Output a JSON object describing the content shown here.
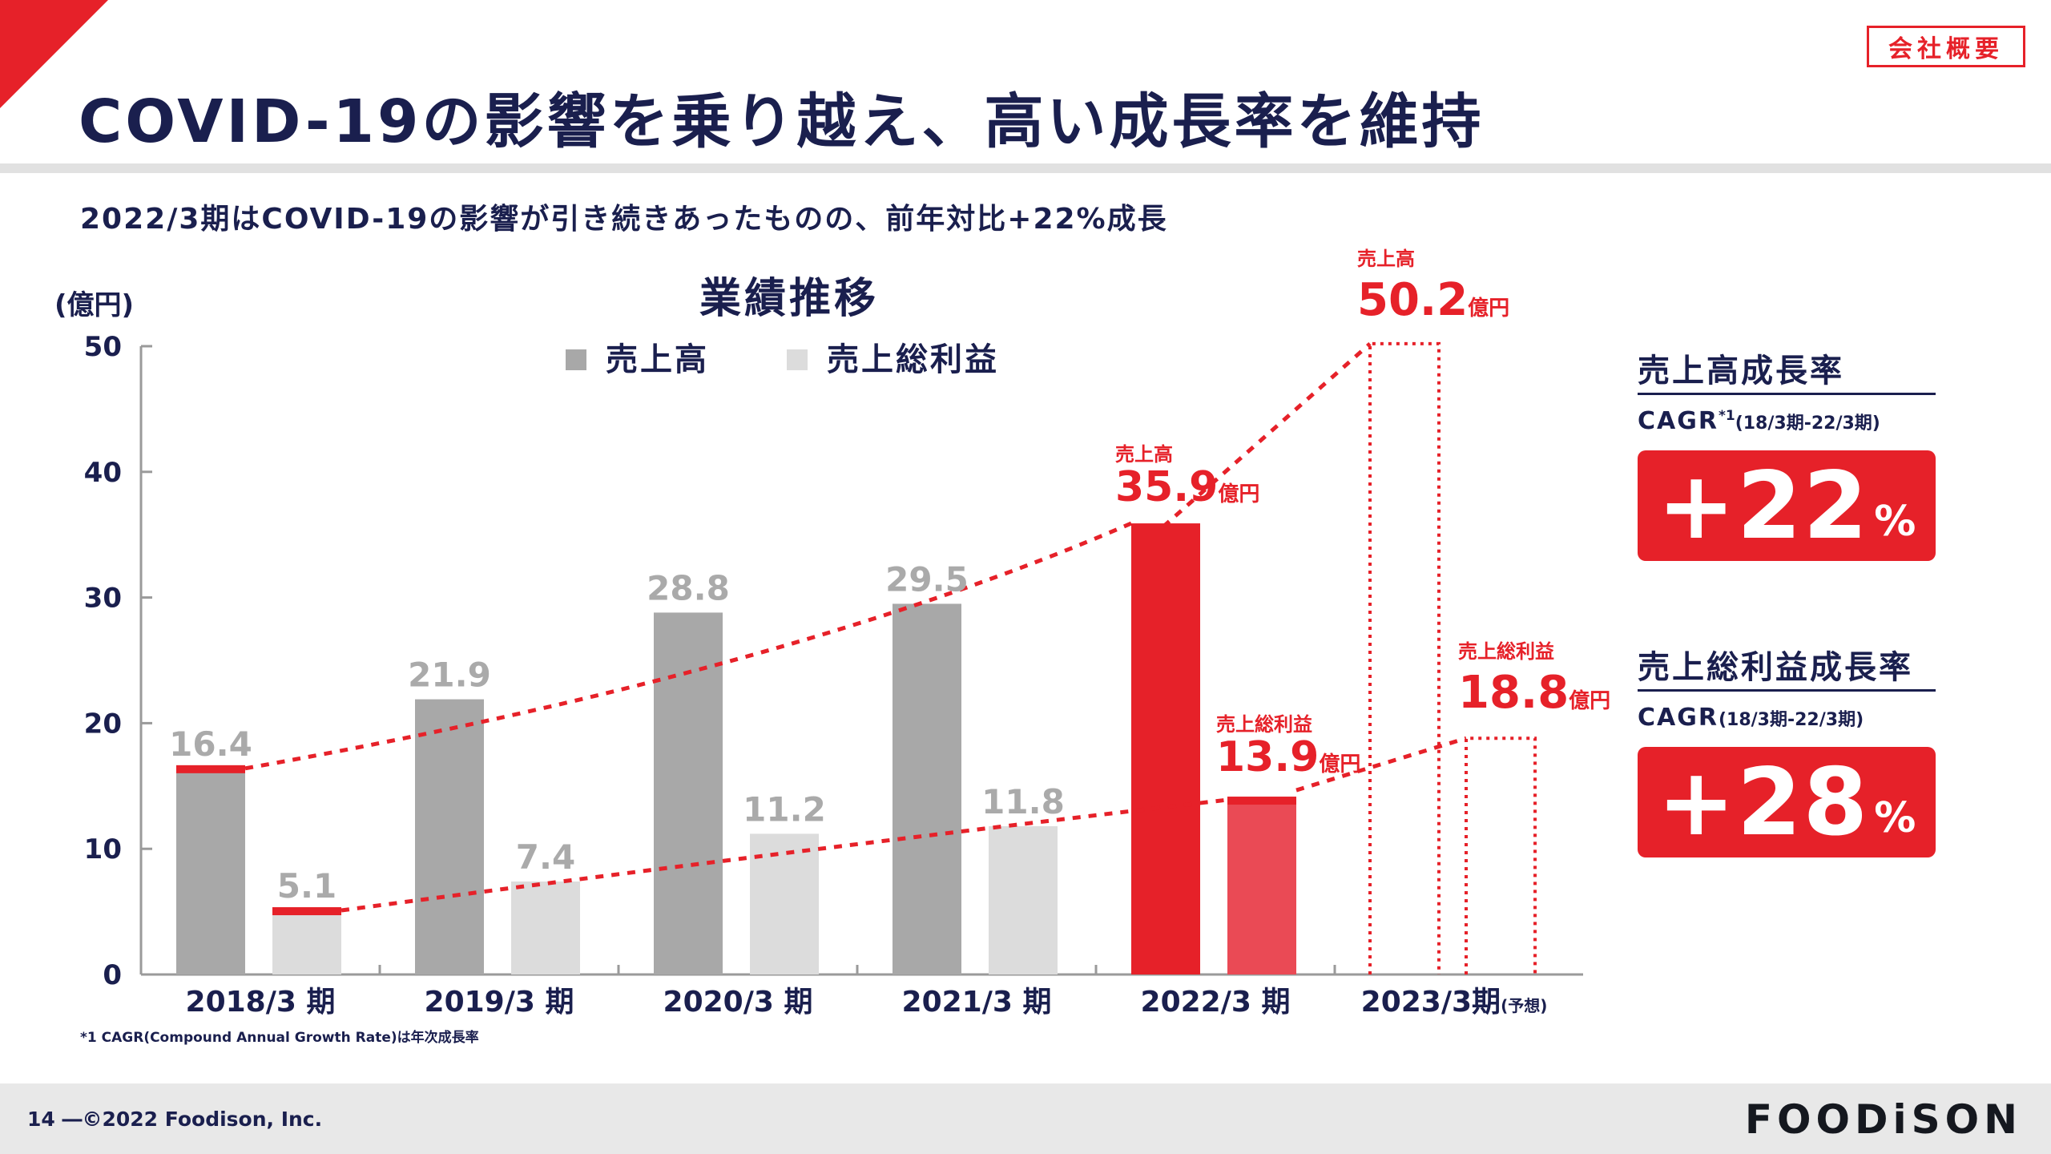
{
  "header": {
    "badge": "会社概要",
    "title": "COVID-19の影響を乗り越え、高い成長率を維持",
    "subtitle": "2022/3期はCOVID-19の影響が引き続きあったものの、前年対比+22%成長"
  },
  "colors": {
    "accent": "#e62129",
    "sales_bar": "#a8a8a8",
    "gross_profit_bar": "#dcdcdc",
    "gross_profit_highlight": "#ea4a55",
    "navy": "#1a1f4e"
  },
  "chart_data": {
    "type": "bar",
    "title": "業績推移",
    "ylabel": "(億円)",
    "ylim": [
      0,
      50
    ],
    "yticks": [
      "0",
      "10",
      "20",
      "30",
      "40",
      "50"
    ],
    "categories": [
      "2018/3 期",
      "2019/3 期",
      "2020/3 期",
      "2021/3 期",
      "2022/3 期",
      "2023/3期"
    ],
    "forecast_suffix": "(予想)",
    "series": [
      {
        "name": "売上高",
        "values": [
          16.4,
          21.9,
          28.8,
          29.5,
          35.9,
          50.2
        ],
        "labels": [
          "16.4",
          "21.9",
          "28.8",
          "29.5",
          "35.9",
          "50.2"
        ]
      },
      {
        "name": "売上総利益",
        "values": [
          5.1,
          7.4,
          11.2,
          11.8,
          13.9,
          18.8
        ],
        "labels": [
          "5.1",
          "7.4",
          "11.2",
          "11.8",
          "13.9",
          "18.8"
        ]
      }
    ],
    "highlight_unit": "億円",
    "highlight_labels": {
      "sales": "売上高",
      "gross_profit": "売上総利益"
    },
    "trend_lines": "dashed"
  },
  "kpi": {
    "sales_growth": {
      "title": "売上高成長率",
      "cagr_label": "CAGR",
      "cagr_note": "*1",
      "period": "(18/3期-22/3期)",
      "value": "+22",
      "unit": "%"
    },
    "gp_growth": {
      "title": "売上総利益成長率",
      "cagr_label": "CAGR",
      "period": "(18/3期-22/3期)",
      "value": "+28",
      "unit": "%"
    }
  },
  "footnote": "*1 CAGR(Compound Annual Growth Rate)は年次成長率",
  "footer": {
    "page": "14 ―©2022 Foodison, Inc.",
    "brand": "FOODiSON"
  }
}
